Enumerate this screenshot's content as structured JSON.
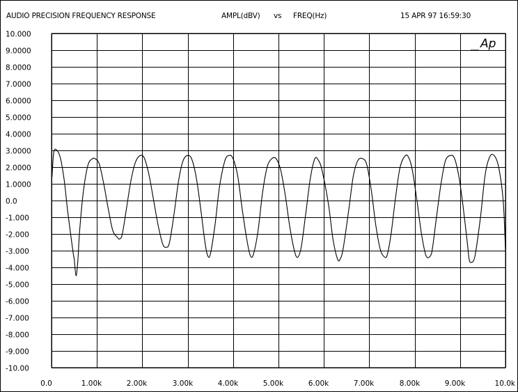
{
  "header": {
    "title": "AUDIO PRECISION FREQUENCY RESPONSE",
    "axes_caption": "AMPL(dBV)",
    "vs": "vs",
    "x_caption": "FREQ(Hz)",
    "timestamp": "15 APR 97 16:59:30"
  },
  "logo_text": "Ap",
  "chart_data": {
    "type": "line",
    "title": "AUDIO PRECISION FREQUENCY RESPONSE",
    "xlabel": "FREQ(Hz)",
    "ylabel": "AMPL(dBV)",
    "xlim": [
      0,
      10000
    ],
    "ylim": [
      -10,
      10
    ],
    "grid": true,
    "x_ticks": [
      0,
      1000,
      2000,
      3000,
      4000,
      5000,
      6000,
      7000,
      8000,
      9000,
      10000
    ],
    "x_tick_labels": [
      "0.0",
      "1.00k",
      "2.00k",
      "3.00k",
      "4.00k",
      "5.00k",
      "6.00k",
      "7.00k",
      "8.00k",
      "9.00k",
      "10.0k"
    ],
    "y_ticks": [
      10,
      9,
      8,
      7,
      6,
      5,
      4,
      3,
      2,
      1,
      0,
      -1,
      -2,
      -3,
      -4,
      -5,
      -6,
      -7,
      -8,
      -9,
      -10
    ],
    "y_tick_labels": [
      "10.000",
      "9.0000",
      "8.0000",
      "7.0000",
      "6.0000",
      "5.0000",
      "4.0000",
      "3.0000",
      "2.0000",
      "1.0000",
      "0.0",
      "-1.000",
      "-2.000",
      "-3.000",
      "-4.000",
      "-5.000",
      "-6.000",
      "-7.000",
      "-8.000",
      "-9.000",
      "-10.00"
    ],
    "series": [
      {
        "color": "#000000",
        "x": [
          10,
          50,
          120,
          200,
          280,
          350,
          420,
          480,
          500,
          540,
          580,
          620,
          700,
          800,
          900,
          960,
          1050,
          1150,
          1250,
          1350,
          1450,
          1500,
          1560,
          1650,
          1750,
          1850,
          1960,
          2050,
          2150,
          2250,
          2350,
          2450,
          2530,
          2600,
          2700,
          2800,
          2900,
          3010,
          3100,
          3200,
          3300,
          3380,
          3440,
          3500,
          3600,
          3700,
          3820,
          3920,
          4000,
          4100,
          4200,
          4300,
          4380,
          4450,
          4550,
          4650,
          4750,
          4850,
          4950,
          5050,
          5150,
          5250,
          5350,
          5420,
          5500,
          5600,
          5700,
          5800,
          5880,
          5960,
          6100,
          6200,
          6300,
          6360,
          6430,
          6550,
          6650,
          6750,
          6860,
          6950,
          7050,
          7150,
          7250,
          7350,
          7400,
          7480,
          7580,
          7680,
          7800,
          7880,
          7950,
          8050,
          8150,
          8250,
          8350,
          8400,
          8480,
          8580,
          8680,
          8800,
          8880,
          8970,
          9050,
          9150,
          9200,
          9250,
          9330,
          9450,
          9550,
          9650,
          9750,
          9850,
          9950,
          10000
        ],
        "y": [
          1.4,
          2.9,
          3.0,
          2.5,
          1.2,
          -0.5,
          -2.0,
          -3.2,
          -3.5,
          -4.5,
          -3.6,
          -1.8,
          0.5,
          2.1,
          2.5,
          2.5,
          2.2,
          1.0,
          -0.5,
          -1.8,
          -2.2,
          -2.3,
          -2.0,
          -0.5,
          1.2,
          2.3,
          2.7,
          2.5,
          1.5,
          0.0,
          -1.5,
          -2.6,
          -2.8,
          -2.5,
          -0.8,
          1.2,
          2.4,
          2.7,
          2.4,
          1.2,
          -0.8,
          -2.5,
          -3.3,
          -3.2,
          -1.5,
          0.8,
          2.4,
          2.7,
          2.5,
          1.5,
          -0.5,
          -2.3,
          -3.3,
          -3.2,
          -1.8,
          0.5,
          2.0,
          2.5,
          2.5,
          1.8,
          0.3,
          -1.6,
          -3.0,
          -3.4,
          -2.8,
          -0.8,
          1.3,
          2.5,
          2.4,
          1.8,
          -0.2,
          -2.3,
          -3.5,
          -3.5,
          -2.8,
          -0.5,
          1.5,
          2.4,
          2.5,
          2.1,
          0.5,
          -1.6,
          -3.0,
          -3.4,
          -3.2,
          -2.0,
          0.2,
          2.0,
          2.7,
          2.5,
          1.8,
          0.0,
          -2.0,
          -3.3,
          -3.3,
          -2.7,
          -1.0,
          1.0,
          2.4,
          2.7,
          2.5,
          1.5,
          0.0,
          -2.3,
          -3.5,
          -3.7,
          -3.3,
          -1.0,
          1.5,
          2.6,
          2.7,
          2.0,
          0.0,
          -3.0
        ]
      }
    ]
  }
}
